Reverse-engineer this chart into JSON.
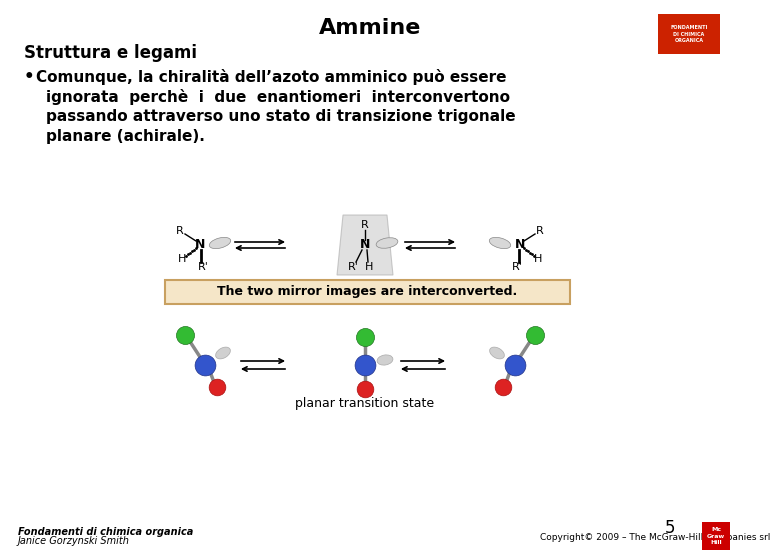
{
  "title": "Ammine",
  "subtitle": "Struttura e legami",
  "bullet_line1": "Comunque, la chiralità dell’azoto amminico può essere",
  "bullet_line2": "ignorata  perchè  i  due  enantiomeri  interconvertono",
  "bullet_line3": "passando attraverso uno stato di transizione trigonale",
  "bullet_line4": "planare (achirale).",
  "footer_left_line1": "Fondamenti di chimica organica",
  "footer_left_line2": "Janice Gorzynski Smith",
  "footer_right": "Copyright© 2009 – The McGraw-Hill Companies srl",
  "page_number": "5",
  "bg_color": "#ffffff",
  "title_color": "#000000",
  "text_color": "#000000",
  "caption": "planar transition state",
  "box_text": "The two mirror images are interconverted.",
  "box_fill": "#f5e6c8",
  "box_edge": "#c8a060",
  "logo_bg": "#cc2200",
  "mcgraw_bg": "#cc0000"
}
